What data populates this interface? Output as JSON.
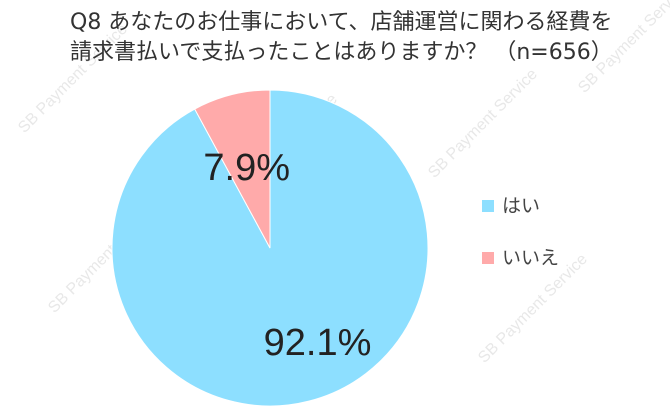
{
  "title": {
    "line1": "Q8 あなたのお仕事において、店舗運営に関わる経費を",
    "line2": "請求書払いで支払ったことはありますか？ （n=656）"
  },
  "watermark": "SB Payment Service",
  "chart_data": {
    "type": "pie",
    "title": "Q8 あなたのお仕事において、店舗運営に関わる経費を 請求書払いで支払ったことはありますか？ （n=656）",
    "categories": [
      "はい",
      "いいえ"
    ],
    "values": [
      92.1,
      7.9
    ],
    "labels": [
      "92.1%",
      "7.9%"
    ],
    "colors": [
      "#8ddfff",
      "#ffaaaa"
    ],
    "legend_position": "right",
    "start_angle": "12 o'clock, clockwise"
  }
}
